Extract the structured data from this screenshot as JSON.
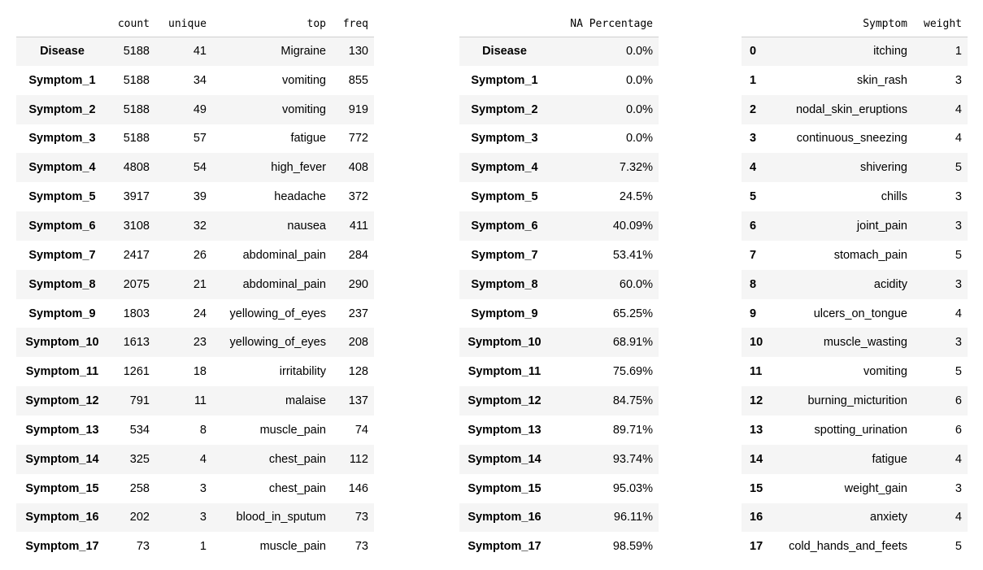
{
  "describe_table": {
    "columns": [
      "",
      "count",
      "unique",
      "top",
      "freq"
    ],
    "rows": [
      [
        "Disease",
        "5188",
        "41",
        "Migraine",
        "130"
      ],
      [
        "Symptom_1",
        "5188",
        "34",
        "vomiting",
        "855"
      ],
      [
        "Symptom_2",
        "5188",
        "49",
        "vomiting",
        "919"
      ],
      [
        "Symptom_3",
        "5188",
        "57",
        "fatigue",
        "772"
      ],
      [
        "Symptom_4",
        "4808",
        "54",
        "high_fever",
        "408"
      ],
      [
        "Symptom_5",
        "3917",
        "39",
        "headache",
        "372"
      ],
      [
        "Symptom_6",
        "3108",
        "32",
        "nausea",
        "411"
      ],
      [
        "Symptom_7",
        "2417",
        "26",
        "abdominal_pain",
        "284"
      ],
      [
        "Symptom_8",
        "2075",
        "21",
        "abdominal_pain",
        "290"
      ],
      [
        "Symptom_9",
        "1803",
        "24",
        "yellowing_of_eyes",
        "237"
      ],
      [
        "Symptom_10",
        "1613",
        "23",
        "yellowing_of_eyes",
        "208"
      ],
      [
        "Symptom_11",
        "1261",
        "18",
        "irritability",
        "128"
      ],
      [
        "Symptom_12",
        "791",
        "11",
        "malaise",
        "137"
      ],
      [
        "Symptom_13",
        "534",
        "8",
        "muscle_pain",
        "74"
      ],
      [
        "Symptom_14",
        "325",
        "4",
        "chest_pain",
        "112"
      ],
      [
        "Symptom_15",
        "258",
        "3",
        "chest_pain",
        "146"
      ],
      [
        "Symptom_16",
        "202",
        "3",
        "blood_in_sputum",
        "73"
      ],
      [
        "Symptom_17",
        "73",
        "1",
        "muscle_pain",
        "73"
      ]
    ]
  },
  "na_table": {
    "columns": [
      "",
      "NA Percentage"
    ],
    "rows": [
      [
        "Disease",
        "0.0%"
      ],
      [
        "Symptom_1",
        "0.0%"
      ],
      [
        "Symptom_2",
        "0.0%"
      ],
      [
        "Symptom_3",
        "0.0%"
      ],
      [
        "Symptom_4",
        "7.32%"
      ],
      [
        "Symptom_5",
        "24.5%"
      ],
      [
        "Symptom_6",
        "40.09%"
      ],
      [
        "Symptom_7",
        "53.41%"
      ],
      [
        "Symptom_8",
        "60.0%"
      ],
      [
        "Symptom_9",
        "65.25%"
      ],
      [
        "Symptom_10",
        "68.91%"
      ],
      [
        "Symptom_11",
        "75.69%"
      ],
      [
        "Symptom_12",
        "84.75%"
      ],
      [
        "Symptom_13",
        "89.71%"
      ],
      [
        "Symptom_14",
        "93.74%"
      ],
      [
        "Symptom_15",
        "95.03%"
      ],
      [
        "Symptom_16",
        "96.11%"
      ],
      [
        "Symptom_17",
        "98.59%"
      ]
    ]
  },
  "weight_table": {
    "columns": [
      "",
      "Symptom",
      "weight"
    ],
    "rows": [
      [
        "0",
        "itching",
        "1"
      ],
      [
        "1",
        "skin_rash",
        "3"
      ],
      [
        "2",
        "nodal_skin_eruptions",
        "4"
      ],
      [
        "3",
        "continuous_sneezing",
        "4"
      ],
      [
        "4",
        "shivering",
        "5"
      ],
      [
        "5",
        "chills",
        "3"
      ],
      [
        "6",
        "joint_pain",
        "3"
      ],
      [
        "7",
        "stomach_pain",
        "5"
      ],
      [
        "8",
        "acidity",
        "3"
      ],
      [
        "9",
        "ulcers_on_tongue",
        "4"
      ],
      [
        "10",
        "muscle_wasting",
        "3"
      ],
      [
        "11",
        "vomiting",
        "5"
      ],
      [
        "12",
        "burning_micturition",
        "6"
      ],
      [
        "13",
        "spotting_urination",
        "6"
      ],
      [
        "14",
        "fatigue",
        "4"
      ],
      [
        "15",
        "weight_gain",
        "3"
      ],
      [
        "16",
        "anxiety",
        "4"
      ],
      [
        "17",
        "cold_hands_and_feets",
        "5"
      ]
    ]
  }
}
